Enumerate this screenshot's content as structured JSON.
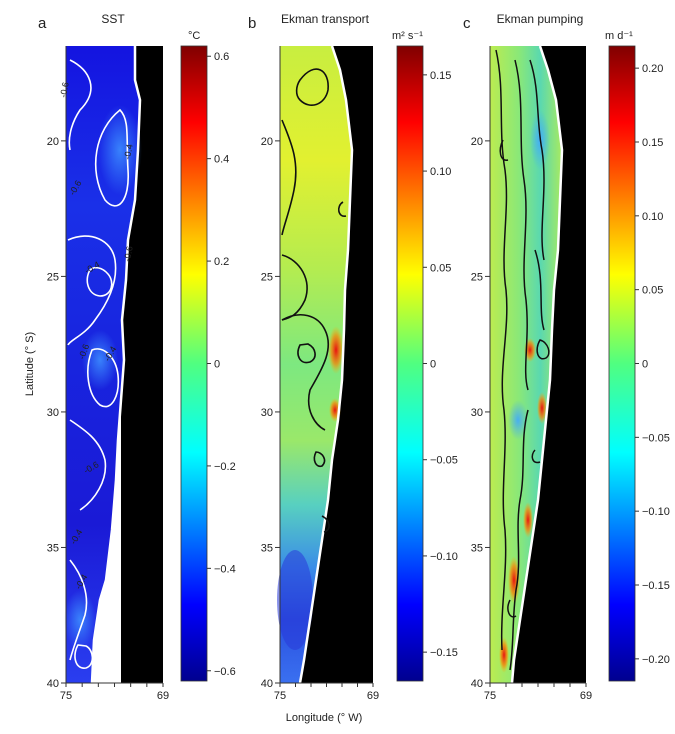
{
  "chart_data": {
    "type": "heatmap",
    "colormap": "jet",
    "shared_axes": {
      "ylabel": "Latitude (° S)",
      "xlabel": "Longitude (° W)",
      "y_ticks": [
        "20",
        "25",
        "30",
        "35",
        "40"
      ],
      "x_ticks": [
        "75",
        "69"
      ],
      "ylim": [
        16.5,
        40
      ],
      "xlim": [
        75,
        69
      ]
    },
    "panels": [
      {
        "label": "a",
        "title": "SST",
        "unit": "°C",
        "colorbar_ticks": [
          "0.6",
          "0.4",
          "0.2",
          "0",
          "−0.2",
          "−0.4",
          "−0.6"
        ],
        "colorbar_range": [
          -0.62,
          0.62
        ],
        "contour_color": "#ffffff",
        "contour_labels": [
          "-0.6",
          "-0.6",
          "-0.4",
          "-0.6",
          "-0.4",
          "-0.6",
          "-0.4",
          "-0.4",
          "-0.6",
          "-0.4"
        ]
      },
      {
        "label": "b",
        "title": "Ekman transport",
        "unit": "m² s⁻¹",
        "colorbar_ticks": [
          "0.15",
          "0.10",
          "0.05",
          "0",
          "−0.05",
          "−0.10",
          "−0.15"
        ],
        "colorbar_range": [
          -0.165,
          0.165
        ],
        "contour_color": "#111111"
      },
      {
        "label": "c",
        "title": "Ekman pumping",
        "unit": "m d⁻¹",
        "colorbar_ticks": [
          "0.20",
          "0.15",
          "0.10",
          "0.05",
          "0",
          "−0.05",
          "−0.10",
          "−0.15",
          "−0.20"
        ],
        "colorbar_range": [
          -0.215,
          0.215
        ],
        "contour_color": "#111111"
      }
    ]
  }
}
